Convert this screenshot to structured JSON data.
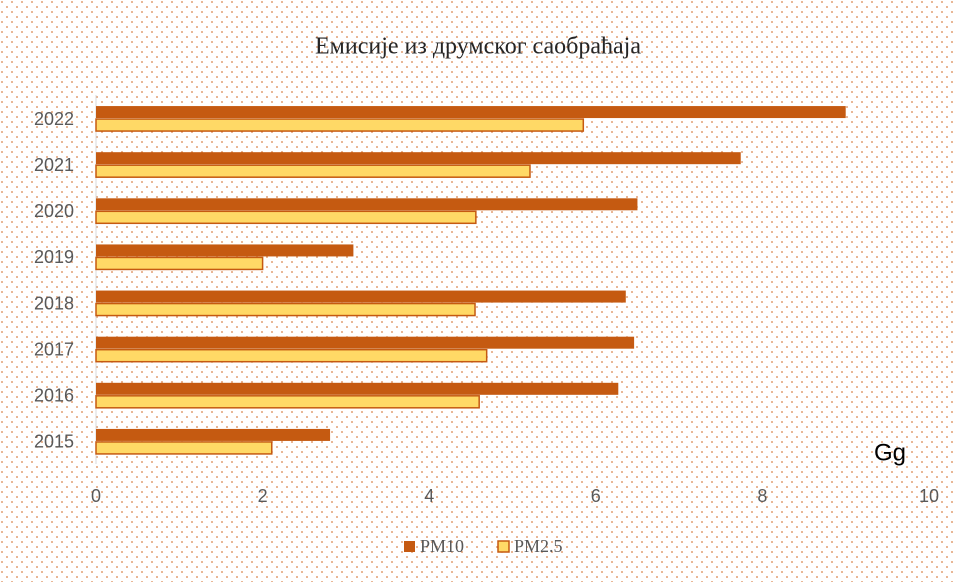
{
  "chart_data": {
    "type": "bar",
    "orientation": "horizontal",
    "title": "Емисије из друмског саобраћаја",
    "unit_label": "Gg",
    "categories": [
      "2015",
      "2016",
      "2017",
      "2018",
      "2019",
      "2020",
      "2021",
      "2022"
    ],
    "series": [
      {
        "name": "PM10",
        "color": "#c55a11",
        "values": [
          2.81,
          6.27,
          6.46,
          6.36,
          3.09,
          6.5,
          7.74,
          9.0
        ]
      },
      {
        "name": "PM2.5",
        "color": "#ffd966",
        "values": [
          2.11,
          4.6,
          4.69,
          4.55,
          2.0,
          4.56,
          5.21,
          5.85
        ]
      }
    ],
    "xlim": [
      0,
      10
    ],
    "xticks": [
      0,
      2,
      4,
      6,
      8,
      10
    ],
    "grid": false
  }
}
